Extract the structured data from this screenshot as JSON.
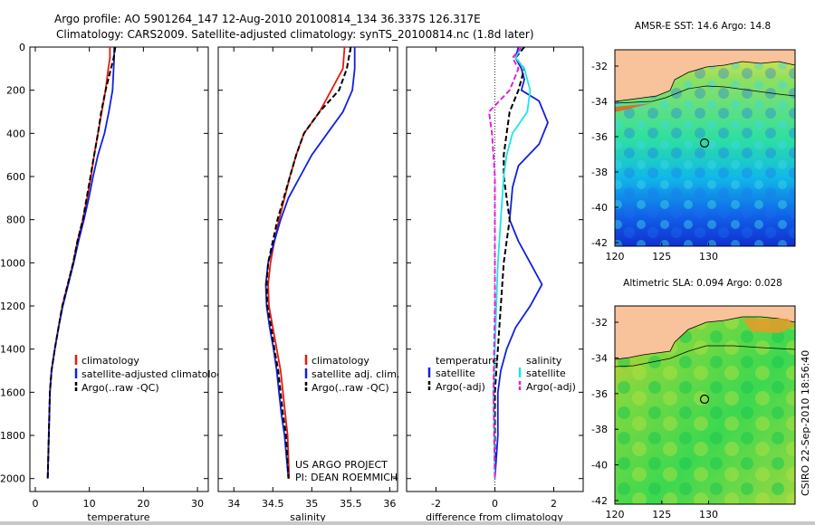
{
  "title_line1": "Argo profile: AO 5901264_147 12-Aug-2010 20100814_134 36.337S 126.317E",
  "title_line2": "Climatology: CARS2009. Satellite-adjusted climatology: synTS_20100814.nc (1.8d later)",
  "side_label": "CSIRO 22-Sep-2010 18:56:40",
  "credit_line1": "US ARGO PROJECT",
  "credit_line2": "PI: DEAN ROEMMICH",
  "map_sst_title": "AMSR-E SST: 14.6 Argo: 14.8",
  "map_sla_title": "Altimetric SLA: 0.094 Argo: 0.028",
  "colors": {
    "climatology": "#e8190c",
    "satellite": "#1020e0",
    "argo": "#000000",
    "sat_salinity": "#1ee5e5",
    "argo_salinity": "#e020e0",
    "land": "#f8c29a"
  },
  "chart_data": [
    {
      "type": "line",
      "xlabel": "temperature",
      "ylabel": "",
      "xlim": [
        -1,
        32
      ],
      "ylim": [
        2060,
        0
      ],
      "xticks": [
        0,
        10,
        20,
        30
      ],
      "yticks": [
        0,
        200,
        400,
        600,
        800,
        1000,
        1200,
        1400,
        1600,
        1800,
        2000
      ],
      "legend": [
        "climatology",
        "satellite-adjusted climatology",
        "Argo(..raw -QC)"
      ],
      "series": [
        {
          "name": "climatology",
          "color": "#e8190c",
          "dash": false,
          "x": [
            13.8,
            13.8,
            13.5,
            13.0,
            12.3,
            11.6,
            10.9,
            10.3,
            9.6,
            8.8,
            7.8,
            7.0,
            6.0,
            5.0,
            4.3,
            3.6,
            3.0,
            2.7,
            2.5,
            2.4,
            2.3
          ],
          "y": [
            0,
            50,
            100,
            200,
            300,
            400,
            500,
            600,
            700,
            800,
            900,
            1000,
            1100,
            1200,
            1300,
            1400,
            1500,
            1600,
            1800,
            1900,
            2000
          ]
        },
        {
          "name": "satellite-adjusted climatology",
          "color": "#1020e0",
          "dash": false,
          "x": [
            14.6,
            14.6,
            14.5,
            14.3,
            13.6,
            12.8,
            11.6,
            10.7,
            9.9,
            9.0,
            8.0,
            7.1,
            6.1,
            5.1,
            4.3,
            3.6,
            3.0,
            2.7,
            2.5,
            2.4,
            2.3
          ],
          "y": [
            0,
            50,
            100,
            200,
            300,
            400,
            500,
            600,
            700,
            800,
            900,
            1000,
            1100,
            1200,
            1300,
            1400,
            1500,
            1600,
            1800,
            1900,
            2000
          ]
        },
        {
          "name": "Argo(..raw -QC)",
          "color": "#000000",
          "dash": true,
          "x": [
            14.8,
            14.5,
            14.0,
            13.0,
            12.2,
            11.6,
            10.9,
            10.2,
            9.5,
            8.8,
            7.8,
            7.0,
            6.0,
            5.0,
            4.3,
            3.6,
            3.0,
            2.7,
            2.5,
            2.4,
            2.3
          ],
          "y": [
            0,
            50,
            100,
            200,
            300,
            400,
            500,
            600,
            700,
            800,
            900,
            1000,
            1100,
            1200,
            1300,
            1400,
            1500,
            1600,
            1800,
            1900,
            2000
          ]
        }
      ]
    },
    {
      "type": "line",
      "xlabel": "salinity",
      "ylabel": "",
      "xlim": [
        33.8,
        36.1
      ],
      "ylim": [
        2060,
        0
      ],
      "xticks": [
        34,
        34.5,
        35,
        35.5,
        36
      ],
      "legend": [
        "climatology",
        "satellite adj. clim.",
        "Argo(..raw -QC)"
      ],
      "series": [
        {
          "name": "climatology",
          "color": "#e8190c",
          "dash": false,
          "x": [
            35.42,
            35.4,
            35.25,
            35.1,
            34.9,
            34.8,
            34.72,
            34.65,
            34.58,
            34.52,
            34.47,
            34.44,
            34.45,
            34.5,
            34.55,
            34.6,
            34.63,
            34.66,
            34.69,
            34.71
          ],
          "y": [
            0,
            100,
            200,
            300,
            400,
            500,
            600,
            700,
            800,
            900,
            1000,
            1100,
            1200,
            1300,
            1400,
            1500,
            1600,
            1700,
            1800,
            2000
          ]
        },
        {
          "name": "satellite adj. clim.",
          "color": "#1020e0",
          "dash": false,
          "x": [
            35.55,
            35.55,
            35.52,
            35.4,
            35.2,
            35.0,
            34.85,
            34.7,
            34.6,
            34.52,
            34.44,
            34.41,
            34.42,
            34.46,
            34.51,
            34.55,
            34.58,
            34.61,
            34.65,
            34.7
          ],
          "y": [
            0,
            100,
            200,
            300,
            400,
            500,
            600,
            700,
            800,
            900,
            1000,
            1100,
            1200,
            1300,
            1400,
            1500,
            1600,
            1700,
            1800,
            2000
          ]
        },
        {
          "name": "Argo(..raw -QC)",
          "color": "#000000",
          "dash": true,
          "x": [
            35.5,
            35.45,
            35.35,
            35.1,
            34.9,
            34.8,
            34.72,
            34.64,
            34.56,
            34.5,
            34.44,
            34.42,
            34.43,
            34.48,
            34.52,
            34.57,
            34.6,
            34.63,
            34.67,
            34.7
          ],
          "y": [
            0,
            100,
            200,
            300,
            400,
            500,
            600,
            700,
            800,
            900,
            1000,
            1100,
            1200,
            1300,
            1400,
            1500,
            1600,
            1700,
            1800,
            2000
          ]
        }
      ]
    },
    {
      "type": "line",
      "xlabel": "difference from climatology",
      "ylabel": "",
      "xlim": [
        -3,
        3
      ],
      "ylim": [
        2060,
        0
      ],
      "xticks": [
        -2,
        0,
        2
      ],
      "legend_temperature": {
        "header": "temperature",
        "items": [
          "satellite",
          "Argo(-adj)"
        ]
      },
      "legend_salinity": {
        "header": "salinity",
        "items": [
          "satellite",
          "Argo(-adj)"
        ]
      },
      "series": [
        {
          "name": "temperature satellite",
          "color": "#1020e0",
          "dash": false,
          "x": [
            0.8,
            0.7,
            0.9,
            1.0,
            0.9,
            1.5,
            1.8,
            1.5,
            0.8,
            0.6,
            0.5,
            0.8,
            1.2,
            1.6,
            1.2,
            0.7,
            0.4,
            0.2,
            0.1,
            0.1,
            0.0
          ],
          "y": [
            0,
            50,
            100,
            150,
            200,
            250,
            350,
            450,
            550,
            650,
            800,
            900,
            1000,
            1100,
            1200,
            1300,
            1400,
            1500,
            1600,
            1800,
            2000
          ]
        },
        {
          "name": "temperature Argo(-adj)",
          "color": "#000000",
          "dash": true,
          "x": [
            1.0,
            0.7,
            1.0,
            0.8,
            0.5,
            0.4,
            0.3,
            0.3,
            0.4,
            0.5,
            0.4,
            0.3,
            0.2,
            0.1,
            0.0,
            0.0
          ],
          "y": [
            0,
            50,
            100,
            200,
            300,
            400,
            500,
            600,
            700,
            800,
            900,
            1000,
            1200,
            1400,
            1600,
            2000
          ]
        },
        {
          "name": "salinity satellite",
          "color": "#1ee5e5",
          "dash": false,
          "x": [
            0.9,
            0.7,
            1.0,
            1.2,
            1.1,
            0.6,
            0.4,
            0.3,
            0.2,
            0.1,
            0.05,
            0.0,
            -0.05,
            0.0
          ],
          "y": [
            0,
            50,
            100,
            200,
            300,
            400,
            500,
            600,
            800,
            1000,
            1200,
            1400,
            1600,
            2000
          ]
        },
        {
          "name": "salinity Argo(-adj)",
          "color": "#e020e0",
          "dash": true,
          "x": [
            0.9,
            0.6,
            0.8,
            0.5,
            -0.2,
            -0.1,
            0.0,
            0.0,
            0.0,
            -0.05,
            0.0
          ],
          "y": [
            0,
            50,
            100,
            200,
            300,
            400,
            600,
            800,
            1200,
            1600,
            2000
          ]
        }
      ]
    }
  ],
  "maps": {
    "xticks": [
      "120",
      "125",
      "130"
    ],
    "yticks": [
      "-32",
      "-34",
      "-36",
      "-38",
      "-40",
      "-42"
    ],
    "float_position": {
      "lon": 126.317,
      "lat": -36.337
    }
  }
}
